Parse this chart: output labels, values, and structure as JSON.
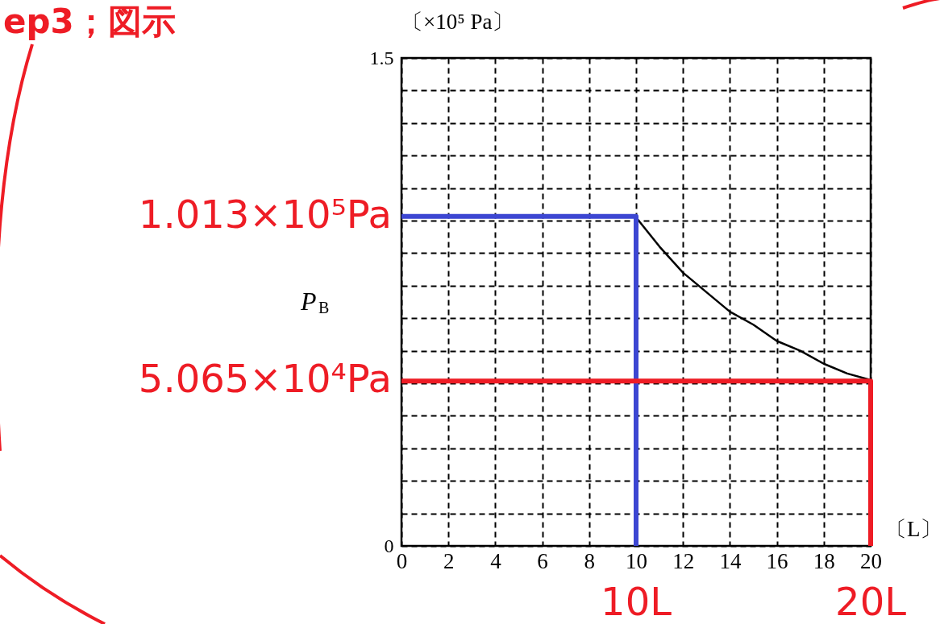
{
  "chart_data": {
    "type": "line",
    "title": "ep3；図示",
    "xlabel": "〔L〕",
    "ylabel": "P$_{B}$",
    "xlim": [
      0,
      20
    ],
    "xticks": [
      0,
      2,
      4,
      6,
      8,
      10,
      12,
      14,
      16,
      18,
      20
    ],
    "ylim": [
      0,
      1.5
    ],
    "yticks": [
      0,
      {
        "value": 0.1,
        "label": null
      },
      {
        "value": 0.2,
        "label": null
      },
      {
        "value": 0.3,
        "label": null
      },
      {
        "value": 0.4,
        "label": null
      },
      {
        "value": 0.5,
        "label": null
      },
      {
        "value": 0.6,
        "label": null
      },
      {
        "value": 0.7,
        "label": null
      },
      {
        "value": 0.8,
        "label": null
      },
      {
        "value": 0.9,
        "label": null
      },
      {
        "value": 1.0,
        "label": null
      },
      {
        "value": 1.1,
        "label": null
      },
      {
        "value": 1.2,
        "label": null
      },
      {
        "value": 1.3,
        "label": null
      },
      {
        "value": 1.4,
        "label": null
      },
      1.5
    ],
    "grid": true,
    "line_style": "solid",
    "marker": "none",
    "series": [
      {
        "color": "#000000",
        "x": [
          10,
          11,
          12,
          13,
          14,
          15,
          16,
          17,
          18,
          19,
          20
        ],
        "values": [
          1.01,
          0.92,
          0.84,
          0.78,
          0.72,
          0.68,
          0.63,
          0.6,
          0.56,
          0.53,
          0.51
        ]
      },
      {
        "color": "#3c46d2",
        "x": [
          0,
          10,
          10
        ],
        "values": [
          1.013,
          1.013,
          0
        ]
      },
      {
        "color": "#ee1c25",
        "x": [
          0,
          20,
          20
        ],
        "values": [
          0.5065,
          0.5065,
          0
        ]
      }
    ],
    "annotations": [
      "〔×10⁵ Pa〕",
      {
        "text": "1.013×10⁵Pa",
        "x": 0,
        "y": 1.013
      },
      {
        "text": "5.065×10⁴Pa",
        "x": 0,
        "y": 0.5065
      },
      {
        "text": "10L",
        "x": 10,
        "y": 0
      },
      {
        "text": "20L",
        "x": 20,
        "y": 0
      }
    ]
  }
}
